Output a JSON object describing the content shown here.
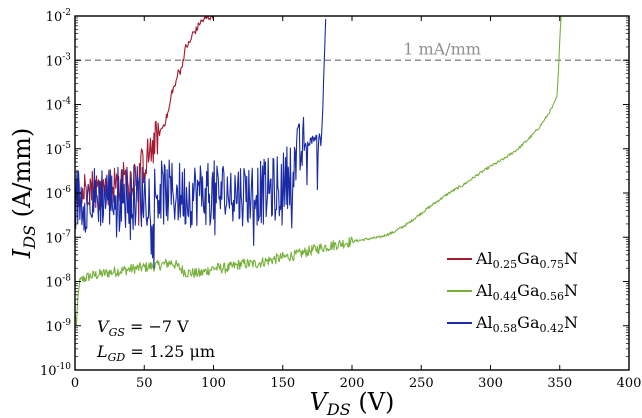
{
  "chart_data": {
    "type": "line",
    "xlabel": {
      "main": "V",
      "sub": "DS",
      "unit": "(V)"
    },
    "ylabel": {
      "main": "I",
      "sub": "DS",
      "unit": "(A/mm)"
    },
    "xlim": [
      0,
      400
    ],
    "ylim": [
      1e-10,
      0.01
    ],
    "yscale": "log",
    "grid": false,
    "x_ticks": [
      {
        "value": 0,
        "label": "0"
      },
      {
        "value": 50,
        "label": "50"
      },
      {
        "value": 100,
        "label": "100"
      },
      {
        "value": 150,
        "label": "150"
      },
      {
        "value": 200,
        "label": "200"
      },
      {
        "value": 250,
        "label": "250"
      },
      {
        "value": 300,
        "label": "300"
      },
      {
        "value": 350,
        "label": "350"
      },
      {
        "value": 400,
        "label": "400"
      }
    ],
    "y_ticks": [
      {
        "value": 1e-10,
        "base": "10",
        "exp": "-10"
      },
      {
        "value": 1e-09,
        "base": "10",
        "exp": "-9"
      },
      {
        "value": 1e-08,
        "base": "10",
        "exp": "-8"
      },
      {
        "value": 1e-07,
        "base": "10",
        "exp": "-7"
      },
      {
        "value": 1e-06,
        "base": "10",
        "exp": "-6"
      },
      {
        "value": 1e-05,
        "base": "10",
        "exp": "-5"
      },
      {
        "value": 0.0001,
        "base": "10",
        "exp": "-4"
      },
      {
        "value": 0.001,
        "base": "10",
        "exp": "-3"
      },
      {
        "value": 0.01,
        "base": "10",
        "exp": "-2"
      }
    ],
    "reference_line": {
      "value": 0.001,
      "label": "1 mA/mm",
      "color": "#909090",
      "label_x": 237
    },
    "annotations": [
      {
        "main": "V",
        "sub": "GS",
        "rest": " = −7 V"
      },
      {
        "main": "L",
        "sub": "GD",
        "rest": " = 1.25 μm"
      }
    ],
    "legend_position": "bottom-right",
    "series": [
      {
        "name_parts": [
          {
            "text": "Al",
            "sub": false
          },
          {
            "text": "0.25",
            "sub": true
          },
          {
            "text": "Ga",
            "sub": false
          },
          {
            "text": "0.75",
            "sub": true
          },
          {
            "text": "N",
            "sub": false
          }
        ],
        "color": "#a3192f",
        "noise": 0.45,
        "points": [
          [
            0,
            1e-06
          ],
          [
            5,
            1e-06
          ],
          [
            10,
            1.5e-06
          ],
          [
            15,
            1.2e-06
          ],
          [
            20,
            1.2e-06
          ],
          [
            25,
            1.5e-06
          ],
          [
            30,
            1.6e-06
          ],
          [
            35,
            1.9e-06
          ],
          [
            40,
            2.2e-06
          ],
          [
            45,
            3e-06
          ],
          [
            50,
            4.5e-06
          ],
          [
            55,
            1e-05
          ],
          [
            60,
            2e-05
          ],
          [
            65,
            4e-05
          ],
          [
            68,
            8e-05
          ],
          [
            70,
            0.0002
          ],
          [
            73,
            0.0003
          ],
          [
            75,
            0.0007
          ],
          [
            76,
            0.0005
          ],
          [
            78,
            0.001
          ],
          [
            80,
            0.002
          ],
          [
            83,
            0.0025
          ],
          [
            85,
            0.004
          ],
          [
            88,
            0.005
          ],
          [
            90,
            0.007
          ],
          [
            95,
            0.009
          ],
          [
            100,
            0.01
          ]
        ]
      },
      {
        "name_parts": [
          {
            "text": "Al",
            "sub": false
          },
          {
            "text": "0.44",
            "sub": true
          },
          {
            "text": "Ga",
            "sub": false
          },
          {
            "text": "0.56",
            "sub": true
          },
          {
            "text": "N",
            "sub": false
          }
        ],
        "color": "#77b13c",
        "noise": 0.12,
        "points": [
          [
            0,
            2e-09
          ],
          [
            1,
            1e-09
          ],
          [
            2,
            4e-09
          ],
          [
            3,
            9e-09
          ],
          [
            5,
            1.1e-08
          ],
          [
            10,
            1.3e-08
          ],
          [
            20,
            1.5e-08
          ],
          [
            30,
            1.7e-08
          ],
          [
            40,
            1.9e-08
          ],
          [
            50,
            2.1e-08
          ],
          [
            60,
            2.3e-08
          ],
          [
            70,
            2.7e-08
          ],
          [
            80,
            1.6e-08
          ],
          [
            90,
            1.5e-08
          ],
          [
            100,
            2e-08
          ],
          [
            110,
            2e-08
          ],
          [
            120,
            2.5e-08
          ],
          [
            130,
            2.5e-08
          ],
          [
            140,
            3e-08
          ],
          [
            150,
            3.5e-08
          ],
          [
            160,
            4e-08
          ],
          [
            170,
            5e-08
          ],
          [
            180,
            6e-08
          ],
          [
            190,
            7e-08
          ],
          [
            200,
            8e-08
          ],
          [
            210,
            9e-08
          ],
          [
            220,
            1e-07
          ],
          [
            230,
            1.3e-07
          ],
          [
            240,
            2e-07
          ],
          [
            250,
            3.5e-07
          ],
          [
            260,
            6e-07
          ],
          [
            270,
            1e-06
          ],
          [
            280,
            1.5e-06
          ],
          [
            290,
            2.5e-06
          ],
          [
            300,
            4e-06
          ],
          [
            310,
            6e-06
          ],
          [
            320,
            1e-05
          ],
          [
            330,
            2e-05
          ],
          [
            335,
            3e-05
          ],
          [
            340,
            5e-05
          ],
          [
            345,
            9e-05
          ],
          [
            348,
            0.00015
          ],
          [
            349,
            0.0005
          ],
          [
            350,
            0.003
          ],
          [
            351,
            0.01
          ]
        ]
      },
      {
        "name_parts": [
          {
            "text": "Al",
            "sub": false
          },
          {
            "text": "0.58",
            "sub": true
          },
          {
            "text": "Ga",
            "sub": false
          },
          {
            "text": "0.42",
            "sub": true
          },
          {
            "text": "N",
            "sub": false
          }
        ],
        "color": "#1a2aa6",
        "noise": 0.75,
        "points": [
          [
            0,
            8e-07
          ],
          [
            10,
            7e-07
          ],
          [
            20,
            9e-07
          ],
          [
            30,
            8e-07
          ],
          [
            40,
            8e-07
          ],
          [
            50,
            9e-07
          ],
          [
            60,
            1e-06
          ],
          [
            70,
            1e-06
          ],
          [
            80,
            9e-07
          ],
          [
            90,
            1e-06
          ],
          [
            100,
            1e-06
          ],
          [
            110,
            1e-06
          ],
          [
            120,
            1e-06
          ],
          [
            130,
            1e-06
          ],
          [
            140,
            1.1e-06
          ],
          [
            150,
            1.5e-06
          ],
          [
            155,
            3e-06
          ],
          [
            160,
            6e-06
          ],
          [
            165,
            1e-05
          ],
          [
            170,
            1.5e-05
          ],
          [
            175,
            2e-05
          ],
          [
            178,
            2e-05
          ],
          [
            179,
            0.0001
          ],
          [
            180,
            0.001
          ],
          [
            181,
            0.01
          ]
        ]
      }
    ]
  }
}
